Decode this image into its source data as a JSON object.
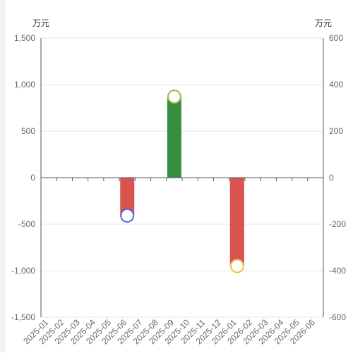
{
  "chart_data": {
    "type": "bar",
    "left_axis": {
      "unit": "万元",
      "ylim": [
        -1500,
        1500
      ],
      "ticks": [
        -1500,
        -1000,
        -500,
        0,
        500,
        1000,
        1500
      ],
      "tick_labels": [
        "-1,500",
        "-1,000",
        "-500",
        "0",
        "500",
        "1,000",
        "1,500"
      ]
    },
    "right_axis": {
      "unit": "万元",
      "ylim": [
        -600,
        600
      ],
      "ticks": [
        -600,
        -400,
        -200,
        0,
        200,
        400,
        600
      ],
      "tick_labels": [
        "-600",
        "-400",
        "-200",
        "0",
        "200",
        "400",
        "600"
      ]
    },
    "categories": [
      "2025-01",
      "2025-02",
      "2025-03",
      "2025-04",
      "2025-05",
      "2025-06",
      "2025-07",
      "2025-08",
      "2025-09",
      "2025-10",
      "2025-11",
      "2025-12",
      "2026-01",
      "2026-02",
      "2026-03",
      "2026-04",
      "2026-05",
      "2026-06"
    ],
    "bar_series": {
      "axis": "left",
      "values": [
        null,
        null,
        null,
        null,
        null,
        -400,
        null,
        null,
        870,
        null,
        null,
        null,
        -950,
        null,
        null,
        null,
        null,
        null
      ],
      "colors": [
        "#d9534f",
        "#d9534f",
        "#d9534f",
        "#d9534f",
        "#d9534f",
        "#d9534f",
        "#d9534f",
        "#d9534f",
        "#388e3c",
        "#d9534f",
        "#d9534f",
        "#d9534f",
        "#d9534f",
        "#d9534f",
        "#d9534f",
        "#d9534f",
        "#d9534f",
        "#d9534f"
      ]
    },
    "marker_series": {
      "axis": "right",
      "values": [
        null,
        null,
        null,
        null,
        null,
        -163,
        null,
        null,
        348,
        null,
        null,
        null,
        -380,
        null,
        null,
        null,
        null,
        null
      ],
      "stroke_colors": [
        "#4a67c9",
        "#4a67c9",
        "#4a67c9",
        "#4a67c9",
        "#4a67c9",
        "#4a67c9",
        "#4a67c9",
        "#4a67c9",
        "#8bc34a",
        "#4a67c9",
        "#4a67c9",
        "#4a67c9",
        "#f0c040",
        "#4a67c9",
        "#4a67c9",
        "#4a67c9",
        "#4a67c9",
        "#4a67c9"
      ]
    },
    "grid": true
  }
}
